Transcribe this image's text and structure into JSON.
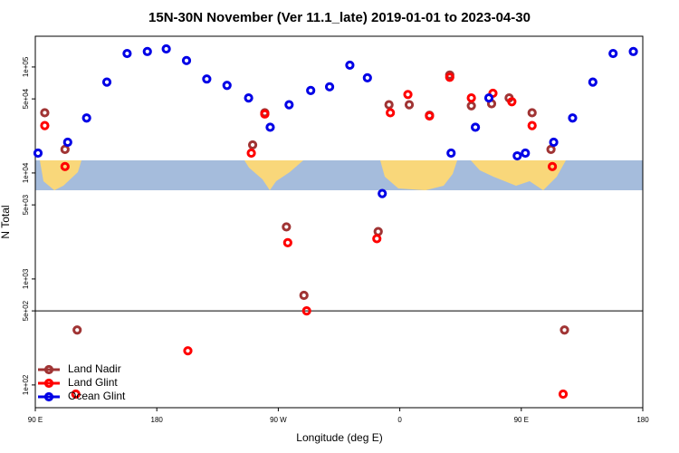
{
  "chart_data": {
    "type": "scatter",
    "title": "15N-30N November (Ver 11.1_late)   2019-01-01 to 2023-04-30",
    "x_label": "Longitude (deg E)",
    "y_label": "N Total",
    "log_y": true,
    "xlim": [
      90,
      540
    ],
    "ylim": [
      61,
      195000
    ],
    "xticks": [
      {
        "value": 90,
        "label": "90 E"
      },
      180,
      {
        "value": 270,
        "label": "90 W"
      },
      {
        "value": 360,
        "label": "0"
      },
      {
        "value": 450,
        "label": "90 E"
      },
      {
        "value": 540,
        "label": "180"
      }
    ],
    "yticks": [
      {
        "value": 100,
        "label": "1e+02"
      },
      {
        "value": 500,
        "label": "5e+02"
      },
      {
        "value": 1000,
        "label": "1e+03"
      },
      {
        "value": 5000,
        "label": "5e+03"
      },
      {
        "value": 10000,
        "label": "1e+04"
      },
      {
        "value": 50000,
        "label": "5e+04"
      },
      {
        "value": 100000,
        "label": "1e+05"
      }
    ],
    "reference_line": 500,
    "legend": "lower left",
    "series": [
      {
        "name": "Land Nadir",
        "color": "#a03434",
        "x": [
          97,
          112,
          121,
          251,
          260,
          276,
          289,
          344,
          352,
          367,
          382,
          397,
          413,
          428,
          441,
          458,
          472,
          482
        ],
        "values": [
          37000,
          16700,
          330,
          18400,
          37000,
          3100,
          700,
          2800,
          44000,
          44000,
          35000,
          84000,
          43000,
          45000,
          51000,
          37000,
          16700,
          330
        ]
      },
      {
        "name": "Land Glint",
        "color": "#ff0000",
        "x": [
          97,
          112,
          120,
          203,
          250,
          260,
          277,
          291,
          343,
          353,
          366,
          382,
          397,
          413,
          429,
          443,
          458,
          473,
          481
        ],
        "values": [
          28000,
          11500,
          82,
          210,
          15400,
          36000,
          2200,
          500,
          2400,
          37000,
          55000,
          34500,
          80000,
          51000,
          56500,
          47000,
          28000,
          11500,
          82
        ]
      },
      {
        "name": "Ocean Glint",
        "color": "#0000e6",
        "x": [
          92,
          114,
          128,
          143,
          158,
          173,
          187,
          202,
          217,
          232,
          248,
          264,
          278,
          294,
          308,
          323,
          336,
          347,
          398,
          416,
          426,
          447,
          453,
          474,
          488,
          503,
          518,
          533
        ],
        "values": [
          15400,
          19500,
          33000,
          72000,
          134000,
          140000,
          148000,
          115000,
          77000,
          67000,
          51000,
          27000,
          44000,
          60000,
          65000,
          104000,
          79000,
          6400,
          15400,
          27000,
          51000,
          14500,
          15400,
          19500,
          33000,
          72000,
          134000,
          140000
        ]
      }
    ]
  }
}
